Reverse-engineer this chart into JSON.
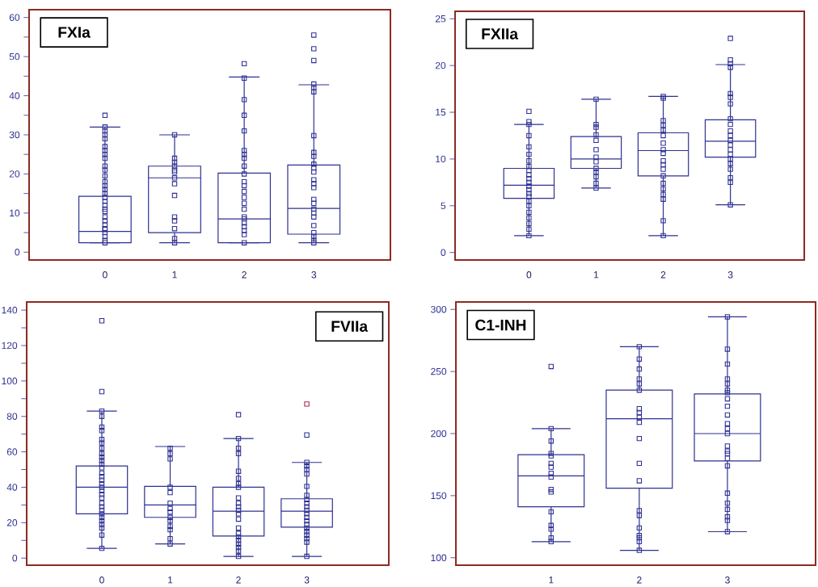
{
  "chart_data": [
    {
      "type": "box",
      "title": "FXIa",
      "categories": [
        "0",
        "1",
        "2",
        "3"
      ],
      "marker": "square",
      "ylim": [
        -2,
        62
      ],
      "yticks": [
        0,
        {
          "value": 5,
          "label": null
        },
        10,
        {
          "value": 15,
          "label": null
        },
        20,
        {
          "value": 25,
          "label": null
        },
        30,
        {
          "value": 35,
          "label": null
        },
        40,
        {
          "value": 45,
          "label": null
        },
        50,
        {
          "value": 55,
          "label": null
        },
        60
      ],
      "series": [
        {
          "color": "#2e3192",
          "boxes": [
            {
              "low": 2.4,
              "q1": 2.4,
              "median": 5.3,
              "q3": 14.3,
              "high": 32
            },
            {
              "low": 2.4,
              "q1": 5,
              "median": 19,
              "q3": 22,
              "high": 30
            },
            {
              "low": 2.4,
              "q1": 2.4,
              "median": 8.5,
              "q3": 20.2,
              "high": 44.8
            },
            {
              "low": 2.4,
              "q1": 4.6,
              "median": 11.2,
              "q3": 22.3,
              "high": 42.8
            }
          ]
        },
        {
          "type": "scatter",
          "color": "#2e3192",
          "x": [
            "0",
            "0",
            "0",
            "0",
            "0",
            "0",
            "0",
            "0",
            "0",
            "0",
            "0",
            "0",
            "0",
            "0",
            "0",
            "0",
            "0",
            "0",
            "0",
            "0",
            "0",
            "0",
            "0",
            "0",
            "0",
            "0",
            "0",
            "0",
            "0",
            "0",
            "1",
            "1",
            "1",
            "1",
            "1",
            "1",
            "1",
            "1",
            "1",
            "1",
            "1",
            "1",
            "1",
            "1",
            "2",
            "2",
            "2",
            "2",
            "2",
            "2",
            "2",
            "2",
            "2",
            "2",
            "2",
            "2",
            "2",
            "2",
            "2",
            "2",
            "2",
            "2",
            "2",
            "2",
            "2",
            "2",
            "2",
            "3",
            "3",
            "3",
            "3",
            "3",
            "3",
            "3",
            "3",
            "3",
            "3",
            "3",
            "3",
            "3",
            "3",
            "3",
            "3",
            "3",
            "3",
            "3",
            "3",
            "3",
            "3",
            "3",
            "3",
            "3"
          ],
          "values": [
            2.4,
            3,
            4,
            5,
            5.8,
            6,
            7,
            8,
            9,
            10.4,
            11,
            12,
            13,
            14,
            15,
            16,
            17,
            18,
            19.5,
            21,
            22,
            24,
            25,
            26,
            27,
            29,
            30,
            31,
            32,
            35,
            2.4,
            3.5,
            6,
            8,
            9,
            14.5,
            17.5,
            19,
            20.5,
            21,
            22,
            23,
            24,
            30,
            2.4,
            4.5,
            5.5,
            6.5,
            7.5,
            8.5,
            9,
            11,
            12.5,
            14,
            15.5,
            17,
            18,
            20,
            22,
            24,
            25,
            26,
            31,
            35,
            39,
            44.5,
            48.2,
            2.4,
            3,
            4,
            5,
            6.8,
            9,
            10,
            11,
            12.5,
            13.5,
            16.5,
            17.5,
            18.5,
            20.5,
            21.5,
            22.5,
            24.5,
            25.5,
            29.8,
            41,
            42,
            43,
            49,
            52,
            55.5
          ]
        }
      ]
    },
    {
      "type": "box",
      "title": "FXIIa",
      "categories": [
        "0",
        "1",
        "2",
        "3"
      ],
      "marker": "square",
      "ylim": [
        -0.8,
        25.8
      ],
      "yticks": [
        0,
        5,
        10,
        15,
        20,
        25
      ],
      "series": [
        {
          "color": "#2e3192",
          "boxes": [
            {
              "low": 1.8,
              "q1": 5.8,
              "median": 7.2,
              "q3": 9.0,
              "high": 13.7
            },
            {
              "low": 6.9,
              "q1": 9.0,
              "median": 10.0,
              "q3": 12.4,
              "high": 16.4
            },
            {
              "low": 1.8,
              "q1": 8.2,
              "median": 10.9,
              "q3": 12.8,
              "high": 16.7
            },
            {
              "low": 5.1,
              "q1": 10.2,
              "median": 11.9,
              "q3": 14.2,
              "high": 20.1
            }
          ]
        },
        {
          "type": "scatter",
          "color": "#2e3192",
          "x": [
            "0",
            "0",
            "0",
            "0",
            "0",
            "0",
            "0",
            "0",
            "0",
            "0",
            "0",
            "0",
            "0",
            "0",
            "0",
            "0",
            "0",
            "0",
            "0",
            "0",
            "0",
            "0",
            "0",
            "1",
            "1",
            "1",
            "1",
            "1",
            "1",
            "1",
            "1",
            "1",
            "1",
            "1",
            "1",
            "1",
            "2",
            "2",
            "2",
            "2",
            "2",
            "2",
            "2",
            "2",
            "2",
            "2",
            "2",
            "2",
            "2",
            "2",
            "2",
            "2",
            "2",
            "2",
            "2",
            "3",
            "3",
            "3",
            "3",
            "3",
            "3",
            "3",
            "3",
            "3",
            "3",
            "3",
            "3",
            "3",
            "3",
            "3",
            "3",
            "3",
            "3",
            "3",
            "3",
            "3"
          ],
          "values": [
            1.8,
            2.5,
            3.1,
            3.7,
            4.3,
            5.0,
            5.5,
            6.0,
            6.3,
            6.7,
            7.1,
            7.5,
            7.9,
            8.3,
            8.8,
            9.2,
            9.8,
            10.5,
            11.3,
            12.5,
            13.7,
            14,
            15.1,
            6.9,
            7.4,
            8.1,
            8.6,
            9.0,
            9.7,
            10.2,
            11,
            12,
            12.6,
            13.4,
            13.7,
            16.4,
            1.8,
            3.4,
            5.7,
            6.2,
            6.8,
            7.4,
            8.2,
            8.9,
            9.4,
            9.8,
            10.6,
            11.0,
            11.7,
            12.5,
            13.1,
            13.6,
            14.1,
            16.5,
            16.7,
            5.1,
            7.5,
            8.0,
            8.9,
            9.5,
            10.0,
            10.5,
            11.0,
            11.5,
            12.0,
            12.5,
            13.0,
            13.7,
            14.3,
            15.9,
            16.6,
            17.0,
            19.8,
            20.2,
            20.6,
            22.9
          ]
        }
      ]
    },
    {
      "type": "box",
      "title": "FVIIa",
      "categories": [
        "0",
        "1",
        "2",
        "3"
      ],
      "marker": "square",
      "ylim": [
        -4,
        144.6
      ],
      "yticks": [
        0,
        {
          "value": 10,
          "label": null
        },
        20,
        {
          "value": 30,
          "label": null
        },
        40,
        {
          "value": 50,
          "label": null
        },
        60,
        {
          "value": 70,
          "label": null
        },
        80,
        {
          "value": 90,
          "label": null
        },
        100,
        {
          "value": 110,
          "label": null
        },
        120,
        {
          "value": 130,
          "label": null
        },
        140
      ],
      "series": [
        {
          "color": "#2e3192",
          "boxes": [
            {
              "low": 5.5,
              "q1": 25,
              "median": 40,
              "q3": 52,
              "high": 83
            },
            {
              "low": 8,
              "q1": 23,
              "median": 30,
              "q3": 40.5,
              "high": 63
            },
            {
              "low": 1,
              "q1": 12.5,
              "median": 26.5,
              "q3": 40,
              "high": 67.5
            },
            {
              "low": 1,
              "q1": 17.5,
              "median": 26.5,
              "q3": 33.5,
              "high": 54
            }
          ]
        },
        {
          "type": "scatter",
          "color": "#2e3192",
          "x": [
            "0",
            "0",
            "0",
            "0",
            "0",
            "0",
            "0",
            "0",
            "0",
            "0",
            "0",
            "0",
            "0",
            "0",
            "0",
            "0",
            "0",
            "0",
            "0",
            "0",
            "0",
            "0",
            "0",
            "0",
            "0",
            "0",
            "0",
            "0",
            "0",
            "0",
            "0",
            "0",
            "1",
            "1",
            "1",
            "1",
            "1",
            "1",
            "1",
            "1",
            "1",
            "1",
            "1",
            "1",
            "1",
            "1",
            "2",
            "2",
            "2",
            "2",
            "2",
            "2",
            "2",
            "2",
            "2",
            "2",
            "2",
            "2",
            "2",
            "2",
            "2",
            "2",
            "2",
            "2",
            "2",
            "2",
            "2",
            "2",
            "3",
            "3",
            "3",
            "3",
            "3",
            "3",
            "3",
            "3",
            "3",
            "3",
            "3",
            "3",
            "3",
            "3",
            "3",
            "3",
            "3",
            "3",
            "3",
            "3",
            "3"
          ],
          "values": [
            5.5,
            13,
            17,
            19,
            21,
            23,
            25,
            27,
            29,
            31,
            34,
            36,
            38,
            40,
            42,
            44,
            46,
            48,
            51,
            53,
            55,
            57,
            59,
            62,
            65,
            67,
            72,
            74,
            80,
            83,
            94,
            134,
            8,
            11,
            16,
            18,
            21,
            23,
            26,
            28,
            31,
            37,
            40,
            56,
            59,
            62,
            1,
            4,
            6,
            8,
            10,
            12,
            14,
            17,
            22,
            25,
            27,
            29,
            31,
            34,
            40,
            42,
            45,
            49,
            59,
            62,
            67.5,
            81,
            1,
            9,
            11,
            13,
            15,
            17,
            19,
            21,
            23,
            25,
            27,
            29,
            31,
            33,
            35.5,
            40.5,
            47.5,
            50,
            52,
            54,
            69.5
          ]
        },
        {
          "type": "scatter",
          "color": "#a3284f",
          "x": [
            "3"
          ],
          "values": [
            87
          ]
        }
      ]
    },
    {
      "type": "box",
      "title": "C1-INH",
      "categories": [
        "1",
        "2",
        "3"
      ],
      "marker": "square",
      "ylim": [
        94,
        306
      ],
      "yticks": [
        100,
        150,
        200,
        250,
        300
      ],
      "series": [
        {
          "color": "#2e3192",
          "boxes": [
            {
              "low": 113,
              "q1": 141,
              "median": 166,
              "q3": 183,
              "high": 204
            },
            {
              "low": 106,
              "q1": 156,
              "median": 212,
              "q3": 235,
              "high": 270
            },
            {
              "low": 121,
              "q1": 178,
              "median": 200,
              "q3": 232,
              "high": 294
            }
          ]
        },
        {
          "type": "scatter",
          "color": "#2e3192",
          "x": [
            "1",
            "1",
            "1",
            "1",
            "1",
            "1",
            "1",
            "1",
            "1",
            "1",
            "1",
            "1",
            "1",
            "1",
            "1",
            "1",
            "2",
            "2",
            "2",
            "2",
            "2",
            "2",
            "2",
            "2",
            "2",
            "2",
            "2",
            "2",
            "2",
            "2",
            "2",
            "2",
            "2",
            "2",
            "2",
            "2",
            "3",
            "3",
            "3",
            "3",
            "3",
            "3",
            "3",
            "3",
            "3",
            "3",
            "3",
            "3",
            "3",
            "3",
            "3",
            "3",
            "3",
            "3",
            "3",
            "3",
            "3",
            "3",
            "3",
            "3"
          ],
          "values": [
            113,
            116,
            123,
            126,
            137,
            153,
            155,
            165,
            168,
            173,
            176,
            182,
            184,
            194,
            204,
            254,
            106,
            113,
            116,
            118,
            124,
            134,
            138,
            162,
            176,
            196,
            209,
            213,
            217,
            220,
            235,
            240,
            244,
            252,
            260,
            270,
            121,
            130,
            133,
            139,
            144,
            152,
            174,
            180,
            184,
            186,
            190,
            200,
            204,
            208,
            215,
            222,
            228,
            233,
            235,
            240,
            244,
            256,
            268,
            294
          ]
        }
      ]
    }
  ]
}
